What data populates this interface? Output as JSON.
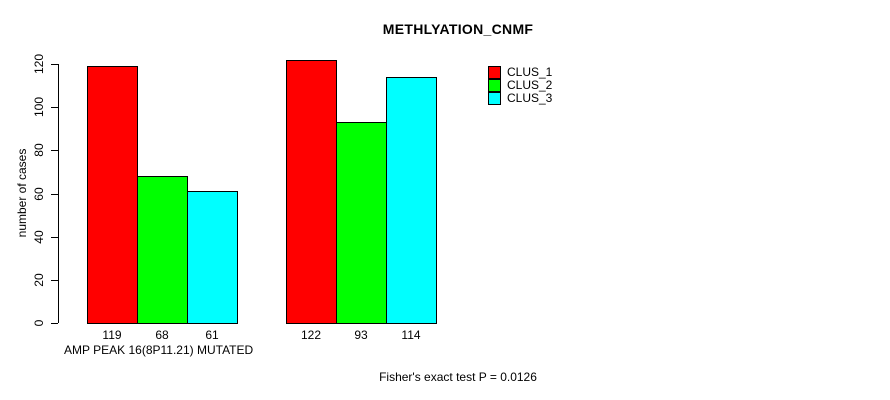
{
  "chart_data": {
    "type": "bar",
    "title": "METHLYATION_CNMF",
    "ylabel": "number of cases",
    "xlabel": "AMP PEAK 16(8P11.21) MUTATED",
    "footnote": "Fisher's exact test P = 0.0126",
    "ylim": [
      0,
      120
    ],
    "yticks": [
      0,
      20,
      40,
      60,
      80,
      100,
      120
    ],
    "grid": false,
    "legend_position": "top-right",
    "groups": 2,
    "series": [
      {
        "name": "CLUS_1",
        "color": "#ff0000",
        "values": [
          119,
          122
        ]
      },
      {
        "name": "CLUS_2",
        "color": "#00ff00",
        "values": [
          68,
          93
        ]
      },
      {
        "name": "CLUS_3",
        "color": "#00ffff",
        "values": [
          61,
          114
        ]
      }
    ],
    "bar_border_color": "#000000",
    "axis_color": "#000000",
    "background_color": "#ffffff",
    "value_labels_shown": true
  }
}
